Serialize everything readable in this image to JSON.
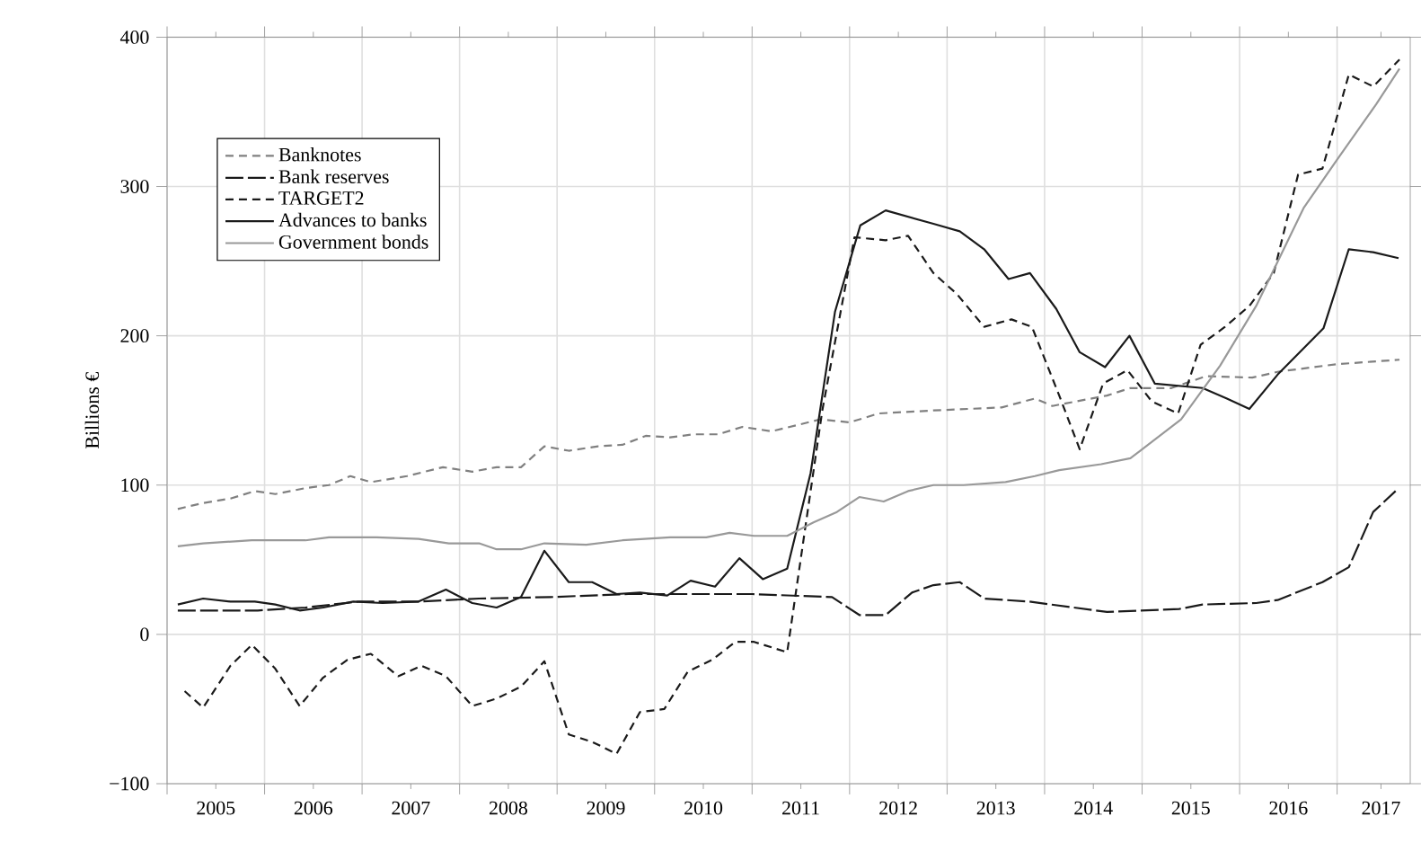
{
  "chart_data": {
    "type": "line",
    "ylabel": "Billions €",
    "xlim": [
      2005,
      2017.75
    ],
    "ylim": [
      -100,
      400
    ],
    "yticks": [
      {
        "value": -100,
        "label": "−100"
      },
      0,
      100,
      200,
      300,
      400
    ],
    "xticks": [
      {
        "value": 2005,
        "label": null
      },
      {
        "value": 2006,
        "label": null
      },
      {
        "value": 2007,
        "label": null
      },
      {
        "value": 2008,
        "label": null
      },
      {
        "value": 2009,
        "label": null
      },
      {
        "value": 2010,
        "label": null
      },
      {
        "value": 2011,
        "label": null
      },
      {
        "value": 2012,
        "label": null
      },
      {
        "value": 2013,
        "label": null
      },
      {
        "value": 2014,
        "label": null
      },
      {
        "value": 2015,
        "label": null
      },
      {
        "value": 2016,
        "label": null
      },
      {
        "value": 2017,
        "label": null
      },
      {
        "value": 2005.5,
        "label": "2005"
      },
      {
        "value": 2006.5,
        "label": "2006"
      },
      {
        "value": 2007.5,
        "label": "2007"
      },
      {
        "value": 2008.5,
        "label": "2008"
      },
      {
        "value": 2009.5,
        "label": "2009"
      },
      {
        "value": 2010.5,
        "label": "2010"
      },
      {
        "value": 2011.5,
        "label": "2011"
      },
      {
        "value": 2012.5,
        "label": "2012"
      },
      {
        "value": 2013.5,
        "label": "2013"
      },
      {
        "value": 2014.5,
        "label": "2014"
      },
      {
        "value": 2015.5,
        "label": "2015"
      },
      {
        "value": 2016.5,
        "label": "2016"
      },
      {
        "value": 2017.45,
        "label": "2017"
      }
    ],
    "grid": true,
    "legend": "top left",
    "series": [
      {
        "name": "Banknotes",
        "color": "#808080",
        "line_style": "dashed",
        "x": [
          2005.11,
          2005.37,
          2005.65,
          2005.9,
          2006.11,
          2006.42,
          2006.66,
          2006.88,
          2007.09,
          2007.46,
          2007.83,
          2008.13,
          2008.38,
          2008.63,
          2008.87,
          2009.12,
          2009.42,
          2009.67,
          2009.91,
          2010.16,
          2010.4,
          2010.65,
          2010.9,
          2011.2,
          2011.7,
          2012.0,
          2012.3,
          2012.86,
          2013.56,
          2013.9,
          2014.08,
          2014.64,
          2014.88,
          2015.3,
          2015.66,
          2016.13,
          2016.4,
          2017.0,
          2017.64
        ],
        "values": [
          84,
          88,
          91,
          96,
          94,
          98,
          100,
          106,
          102,
          106,
          112,
          109,
          112,
          112,
          126,
          123,
          126,
          127,
          133,
          132,
          134,
          134,
          139,
          136,
          144,
          142,
          148,
          150,
          152,
          158,
          153,
          160,
          165,
          165,
          173,
          172,
          176,
          181,
          184
        ]
      },
      {
        "name": "Bank reserves",
        "color": "#1a1a1a",
        "line_style": "long dashed",
        "x": [
          2005.11,
          2005.93,
          2006.42,
          2006.97,
          2007.58,
          2008.2,
          2008.93,
          2009.73,
          2010.53,
          2011.0,
          2011.82,
          2012.1,
          2012.37,
          2012.64,
          2012.86,
          2013.13,
          2013.38,
          2013.84,
          2014.64,
          2015.38,
          2015.62,
          2016.17,
          2016.39,
          2016.85,
          2017.12,
          2017.37,
          2017.6
        ],
        "values": [
          16,
          16,
          18,
          22,
          22,
          24,
          25,
          27,
          27,
          27,
          25,
          13,
          13,
          28,
          33,
          35,
          24,
          22,
          15,
          17,
          20,
          21,
          23,
          35,
          45,
          82,
          96
        ]
      },
      {
        "name": "TARGET2",
        "color": "#1a1a1a",
        "line_style": "dashed",
        "x": [
          2005.18,
          2005.37,
          2005.65,
          2005.87,
          2006.11,
          2006.36,
          2006.6,
          2006.85,
          2007.09,
          2007.37,
          2007.61,
          2007.86,
          2008.13,
          2008.38,
          2008.63,
          2008.87,
          2009.12,
          2009.36,
          2009.61,
          2009.85,
          2010.1,
          2010.34,
          2010.59,
          2010.83,
          2011.02,
          2011.36,
          2011.72,
          2012.05,
          2012.37,
          2012.6,
          2012.86,
          2013.1,
          2013.38,
          2013.66,
          2013.87,
          2014.15,
          2014.36,
          2014.6,
          2014.85,
          2015.1,
          2015.37,
          2015.6,
          2015.85,
          2016.1,
          2016.35,
          2016.6,
          2016.85,
          2017.12,
          2017.37,
          2017.64
        ],
        "values": [
          -38,
          -49,
          -21,
          -7,
          -23,
          -48,
          -29,
          -17,
          -13,
          -28,
          -21,
          -28,
          -48,
          -43,
          -35,
          -18,
          -67,
          -72,
          -80,
          -52,
          -50,
          -25,
          -17,
          -5,
          -5,
          -12,
          150,
          266,
          264,
          267,
          242,
          228,
          206,
          211,
          206,
          160,
          124,
          168,
          177,
          156,
          148,
          194,
          206,
          220,
          242,
          308,
          312,
          375,
          367,
          385
        ]
      },
      {
        "name": "Advances to banks",
        "color": "#1a1a1a",
        "line_style": "solid",
        "x": [
          2005.11,
          2005.37,
          2005.65,
          2005.9,
          2006.11,
          2006.36,
          2006.6,
          2006.91,
          2007.21,
          2007.58,
          2007.86,
          2008.13,
          2008.38,
          2008.63,
          2008.87,
          2009.12,
          2009.36,
          2009.61,
          2009.85,
          2010.13,
          2010.37,
          2010.62,
          2010.87,
          2011.11,
          2011.36,
          2011.6,
          2011.85,
          2012.11,
          2012.37,
          2012.86,
          2013.13,
          2013.38,
          2013.63,
          2013.85,
          2014.12,
          2014.36,
          2014.62,
          2014.87,
          2015.13,
          2015.62,
          2015.87,
          2016.1,
          2016.39,
          2016.86,
          2017.12,
          2017.37,
          2017.63
        ],
        "values": [
          20,
          24,
          22,
          22,
          20,
          16,
          18,
          22,
          21,
          22,
          30,
          21,
          18,
          25,
          56,
          35,
          35,
          27,
          28,
          26,
          36,
          32,
          51,
          37,
          44,
          108,
          216,
          274,
          284,
          275,
          270,
          258,
          238,
          242,
          218,
          189,
          179,
          200,
          168,
          165,
          158,
          151,
          174,
          205,
          258,
          256,
          252
        ]
      },
      {
        "name": "Government bonds",
        "color": "#999999",
        "line_style": "solid",
        "x": [
          2005.11,
          2005.37,
          2005.87,
          2006.42,
          2006.66,
          2007.15,
          2007.58,
          2007.89,
          2008.2,
          2008.38,
          2008.63,
          2008.87,
          2009.3,
          2009.67,
          2010.16,
          2010.53,
          2010.77,
          2011.02,
          2011.36,
          2011.63,
          2011.87,
          2012.1,
          2012.35,
          2012.6,
          2012.86,
          2013.17,
          2013.6,
          2013.9,
          2014.15,
          2014.58,
          2014.88,
          2015.4,
          2015.8,
          2016.17,
          2016.66,
          2017.0,
          2017.4,
          2017.64
        ],
        "values": [
          59,
          61,
          63,
          63,
          65,
          65,
          64,
          61,
          61,
          57,
          57,
          61,
          60,
          63,
          65,
          65,
          68,
          66,
          66,
          75,
          82,
          92,
          89,
          96,
          100,
          100,
          102,
          106,
          110,
          114,
          118,
          144,
          180,
          220,
          286,
          318,
          355,
          379
        ]
      }
    ]
  }
}
